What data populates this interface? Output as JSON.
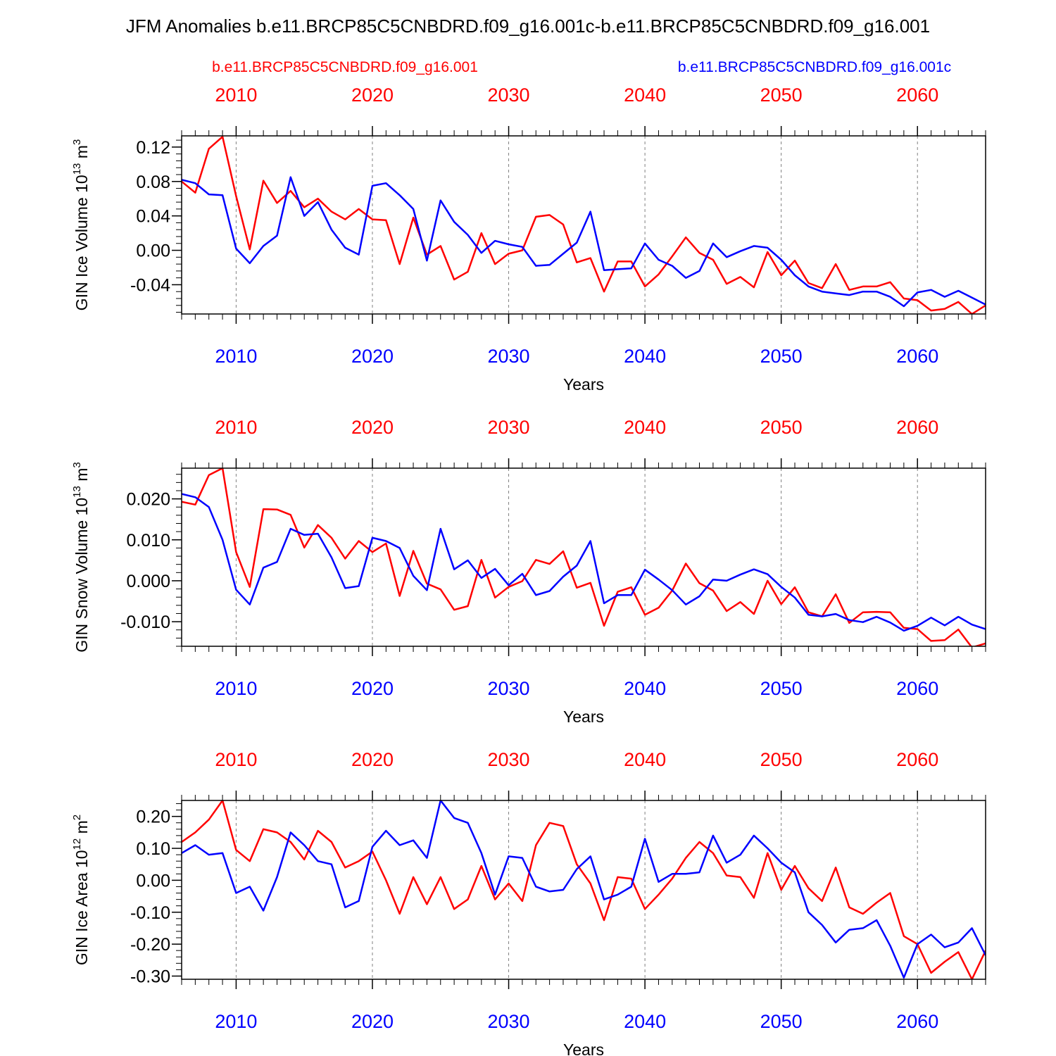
{
  "title": "JFM Anomalies b.e11.BRCP85C5CNBDRD.f09_g16.001c-b.e11.BRCP85C5CNBDRD.f09_g16.001",
  "legend": {
    "left_label": "b.e11.BRCP85C5CNBDRD.f09_g16.001",
    "right_label": "b.e11.BRCP85C5CNBDRD.f09_g16.001c"
  },
  "colors": {
    "red": "#ff0000",
    "blue": "#0000ff",
    "axis": "#000000",
    "grid": "#808080"
  },
  "chart_data": [
    {
      "type": "line",
      "ylabel": "GIN Ice Volume 10",
      "ylabel_exp": "13",
      "ylabel_unit": " m",
      "ylabel_unit_exp": "3",
      "xlabel": "Years",
      "xlim": [
        2006,
        2065
      ],
      "ylim": [
        -0.074,
        0.133
      ],
      "yticks": [
        0.12,
        0.08,
        0.04,
        0.0,
        -0.04
      ],
      "ytick_labels": [
        "0.12",
        "0.08",
        "0.04",
        "0.00",
        "-0.04"
      ],
      "yminor_step": 0.008,
      "xticks": [
        2010,
        2020,
        2030,
        2040,
        2050,
        2060
      ],
      "xtick_labels": [
        "2010",
        "2020",
        "2030",
        "2040",
        "2050",
        "2060"
      ],
      "series": [
        {
          "name": "b.e11.BRCP85C5CNBDRD.f09_g16.001",
          "color": "#ff0000",
          "x_start": 2006,
          "values": [
            0.08,
            0.067,
            0.118,
            0.132,
            0.063,
            0.001,
            0.081,
            0.055,
            0.069,
            0.05,
            0.06,
            0.045,
            0.036,
            0.048,
            0.036,
            0.035,
            -0.016,
            0.038,
            -0.005,
            0.005,
            -0.034,
            -0.025,
            0.02,
            -0.016,
            -0.004,
            0.0,
            0.039,
            0.041,
            0.03,
            -0.014,
            -0.009,
            -0.048,
            -0.013,
            -0.013,
            -0.042,
            -0.028,
            -0.007,
            0.015,
            -0.003,
            -0.011,
            -0.039,
            -0.031,
            -0.043,
            -0.002,
            -0.029,
            -0.012,
            -0.038,
            -0.044,
            -0.016,
            -0.046,
            -0.042,
            -0.042,
            -0.037,
            -0.056,
            -0.058,
            -0.07,
            -0.068,
            -0.06,
            -0.074,
            -0.064
          ]
        },
        {
          "name": "b.e11.BRCP85C5CNBDRD.f09_g16.001c",
          "color": "#0000ff",
          "x_start": 2006,
          "values": [
            0.082,
            0.078,
            0.065,
            0.064,
            0.002,
            -0.015,
            0.005,
            0.017,
            0.085,
            0.04,
            0.056,
            0.024,
            0.003,
            -0.005,
            0.075,
            0.078,
            0.064,
            0.048,
            -0.012,
            0.058,
            0.033,
            0.018,
            -0.003,
            0.011,
            0.007,
            0.004,
            -0.018,
            -0.017,
            -0.004,
            0.009,
            0.045,
            -0.023,
            -0.022,
            -0.021,
            0.008,
            -0.011,
            -0.018,
            -0.032,
            -0.024,
            0.008,
            -0.008,
            -0.001,
            0.005,
            0.003,
            -0.011,
            -0.029,
            -0.042,
            -0.048,
            -0.05,
            -0.052,
            -0.048,
            -0.048,
            -0.054,
            -0.065,
            -0.049,
            -0.046,
            -0.054,
            -0.047,
            -0.055,
            -0.063
          ]
        }
      ]
    },
    {
      "type": "line",
      "ylabel": "GIN Snow Volume 10",
      "ylabel_exp": "13",
      "ylabel_unit": " m",
      "ylabel_unit_exp": "3",
      "xlabel": "Years",
      "xlim": [
        2006,
        2065
      ],
      "ylim": [
        -0.016,
        0.0275
      ],
      "yticks": [
        0.02,
        0.01,
        0.0,
        -0.01
      ],
      "ytick_labels": [
        "0.020",
        "0.010",
        "0.000",
        "-0.010"
      ],
      "yminor_step": 0.002,
      "xticks": [
        2010,
        2020,
        2030,
        2040,
        2050,
        2060
      ],
      "xtick_labels": [
        "2010",
        "2020",
        "2030",
        "2040",
        "2050",
        "2060"
      ],
      "series": [
        {
          "name": "b.e11.BRCP85C5CNBDRD.f09_g16.001",
          "color": "#ff0000",
          "x_start": 2006,
          "values": [
            0.0193,
            0.0186,
            0.0258,
            0.0275,
            0.007,
            -0.0015,
            0.0175,
            0.0174,
            0.0161,
            0.0081,
            0.0136,
            0.0105,
            0.0054,
            0.0097,
            0.007,
            0.0091,
            -0.0037,
            0.0073,
            -0.0007,
            -0.0021,
            -0.0071,
            -0.0062,
            0.0051,
            -0.0041,
            -0.0015,
            -0.0001,
            0.0051,
            0.0041,
            0.0072,
            -0.0017,
            -0.0005,
            -0.011,
            -0.0027,
            -0.0016,
            -0.0083,
            -0.0066,
            -0.0024,
            0.0042,
            -0.0006,
            -0.0024,
            -0.0074,
            -0.0052,
            -0.0081,
            0.0,
            -0.0057,
            -0.0016,
            -0.0077,
            -0.0087,
            -0.0033,
            -0.0103,
            -0.0077,
            -0.0076,
            -0.0077,
            -0.0115,
            -0.0118,
            -0.0147,
            -0.0145,
            -0.0119,
            -0.0163,
            -0.0153
          ]
        },
        {
          "name": "b.e11.BRCP85C5CNBDRD.f09_g16.001c",
          "color": "#0000ff",
          "x_start": 2006,
          "values": [
            0.0212,
            0.0204,
            0.018,
            0.01,
            -0.0022,
            -0.0058,
            0.0032,
            0.0046,
            0.0127,
            0.0112,
            0.0115,
            0.0057,
            -0.0018,
            -0.0013,
            0.0105,
            0.0097,
            0.008,
            0.0012,
            -0.0023,
            0.0127,
            0.0028,
            0.005,
            0.0007,
            0.0029,
            -0.0011,
            0.0017,
            -0.0035,
            -0.0025,
            0.001,
            0.0037,
            0.0097,
            -0.0055,
            -0.0035,
            -0.0035,
            0.0027,
            0.0003,
            -0.0023,
            -0.0058,
            -0.0038,
            0.0003,
            0.0,
            0.0015,
            0.0028,
            0.0016,
            -0.0015,
            -0.0041,
            -0.0083,
            -0.0087,
            -0.0081,
            -0.0096,
            -0.0101,
            -0.0088,
            -0.0102,
            -0.0122,
            -0.011,
            -0.009,
            -0.0109,
            -0.0088,
            -0.0107,
            -0.0118
          ]
        }
      ]
    },
    {
      "type": "line",
      "ylabel": "GIN Ice Area 10",
      "ylabel_exp": "12",
      "ylabel_unit": " m",
      "ylabel_unit_exp": "2",
      "xlabel": "Years",
      "xlim": [
        2006,
        2065
      ],
      "ylim": [
        -0.31,
        0.25
      ],
      "yticks": [
        0.2,
        0.1,
        0.0,
        -0.1,
        -0.2,
        -0.3
      ],
      "ytick_labels": [
        "0.20",
        "0.10",
        "0.00",
        "-0.10",
        "-0.20",
        "-0.30"
      ],
      "yminor_step": 0.02,
      "xticks": [
        2010,
        2020,
        2030,
        2040,
        2050,
        2060
      ],
      "xtick_labels": [
        "2010",
        "2020",
        "2030",
        "2040",
        "2050",
        "2060"
      ],
      "series": [
        {
          "name": "b.e11.BRCP85C5CNBDRD.f09_g16.001",
          "color": "#ff0000",
          "x_start": 2006,
          "values": [
            0.12,
            0.15,
            0.19,
            0.25,
            0.095,
            0.06,
            0.16,
            0.15,
            0.12,
            0.065,
            0.155,
            0.12,
            0.04,
            0.06,
            0.09,
            0.0,
            -0.105,
            0.01,
            -0.075,
            0.01,
            -0.09,
            -0.06,
            0.045,
            -0.06,
            -0.01,
            -0.065,
            0.11,
            0.18,
            0.17,
            0.05,
            -0.01,
            -0.125,
            0.01,
            0.005,
            -0.09,
            -0.045,
            0.005,
            0.07,
            0.12,
            0.085,
            0.015,
            0.01,
            -0.055,
            0.085,
            -0.03,
            0.045,
            -0.025,
            -0.065,
            0.04,
            -0.085,
            -0.105,
            -0.07,
            -0.04,
            -0.175,
            -0.2,
            -0.29,
            -0.255,
            -0.225,
            -0.31,
            -0.22
          ]
        },
        {
          "name": "b.e11.BRCP85C5CNBDRD.f09_g16.001c",
          "color": "#0000ff",
          "x_start": 2006,
          "values": [
            0.085,
            0.11,
            0.08,
            0.085,
            -0.04,
            -0.02,
            -0.095,
            0.01,
            0.15,
            0.11,
            0.06,
            0.05,
            -0.085,
            -0.065,
            0.105,
            0.155,
            0.11,
            0.125,
            0.07,
            0.25,
            0.195,
            0.18,
            0.085,
            -0.045,
            0.075,
            0.07,
            -0.02,
            -0.035,
            -0.03,
            0.035,
            0.075,
            -0.06,
            -0.045,
            -0.02,
            0.13,
            -0.005,
            0.02,
            0.02,
            0.025,
            0.14,
            0.055,
            0.08,
            0.14,
            0.1,
            0.055,
            0.025,
            -0.1,
            -0.14,
            -0.195,
            -0.155,
            -0.15,
            -0.125,
            -0.205,
            -0.305,
            -0.2,
            -0.17,
            -0.21,
            -0.195,
            -0.15,
            -0.235
          ]
        }
      ]
    }
  ]
}
